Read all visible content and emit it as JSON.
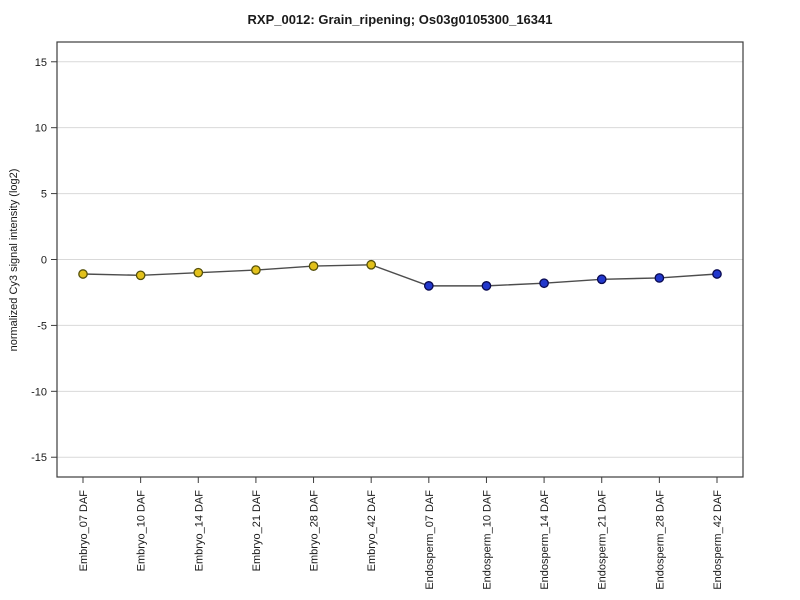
{
  "chart_data": {
    "type": "line",
    "title": "RXP_0012: Grain_ripening; Os03g0105300_16341",
    "xlabel": "",
    "ylabel": "normalized Cy3 signal intensity (log2)",
    "categories": [
      "Embryo_07 DAF",
      "Embryo_10 DAF",
      "Embryo_14 DAF",
      "Embryo_21 DAF",
      "Embryo_28 DAF",
      "Embryo_42 DAF",
      "Endosperm_07 DAF",
      "Endosperm_10 DAF",
      "Endosperm_14 DAF",
      "Endosperm_21 DAF",
      "Endosperm_28 DAF",
      "Endosperm_42 DAF"
    ],
    "series": [
      {
        "name": "Embryo",
        "marker_fill": "#e2c11c",
        "marker_edge": "#55500a",
        "values": [
          -1.1,
          -1.2,
          -1.0,
          -0.8,
          -0.5,
          -0.4
        ]
      },
      {
        "name": "Endosperm",
        "marker_fill": "#2238cc",
        "marker_edge": "#0a0a50",
        "values": [
          -2.0,
          -2.0,
          -1.8,
          -1.5,
          -1.4,
          -1.1
        ]
      }
    ],
    "connected_single_line": true,
    "line_color": "#4d4d4d",
    "grid": true,
    "gridline_color": "#d9d9d9",
    "axis_color": "#3c3c3c",
    "yticks": [
      -15,
      -10,
      -5,
      0,
      5,
      10,
      15
    ],
    "ylim": [
      -16.5,
      16.5
    ],
    "legend_position": "none"
  }
}
